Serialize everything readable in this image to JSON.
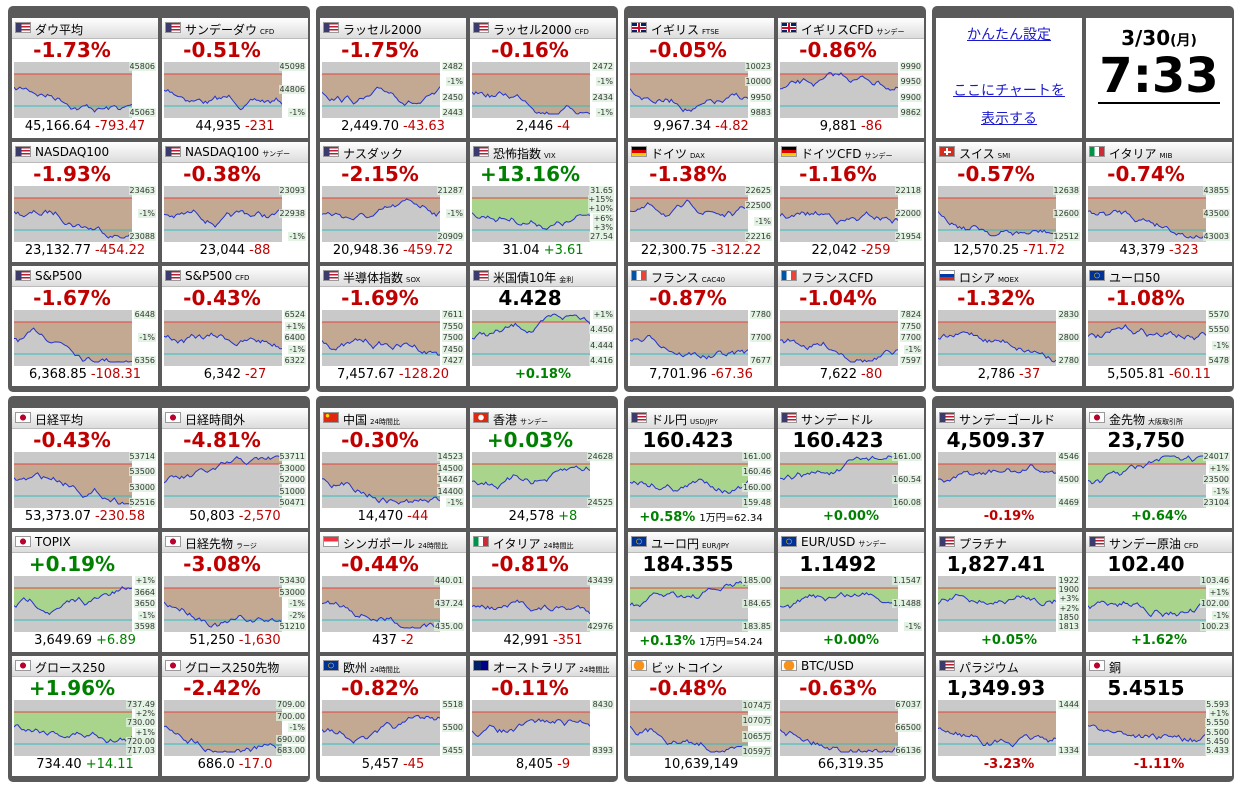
{
  "groups": [
    {
      "tiles": [
        {
          "name": "ダウ平均",
          "tag": "",
          "headline": "-1.73%",
          "axis": [
            "45806",
            "45063"
          ],
          "footer": [
            "45,166.64",
            "-793.47"
          ]
        },
        {
          "name": "サンデーダウ",
          "tag": "CFD",
          "headline": "-0.51%",
          "axis": [
            "45098",
            "44806",
            "-1%"
          ],
          "footer": [
            "44,935",
            "-231"
          ]
        },
        {
          "name": "NASDAQ100",
          "tag": "",
          "headline": "-1.93%",
          "axis": [
            "23463",
            "-1%",
            "23088"
          ],
          "footer": [
            "23,132.77",
            "-454.22"
          ]
        },
        {
          "name": "NASDAQ100",
          "tag": "サンデー",
          "headline": "-0.38%",
          "axis": [
            "23093",
            "22938",
            "-1%"
          ],
          "footer": [
            "23,044",
            "-88"
          ]
        },
        {
          "name": "S&P500",
          "tag": "",
          "headline": "-1.67%",
          "axis": [
            "6448",
            "-1%",
            "6356"
          ],
          "footer": [
            "6,368.85",
            "-108.31"
          ]
        },
        {
          "name": "S&P500",
          "tag": "CFD",
          "headline": "-0.43%",
          "axis": [
            "6524",
            "+1%",
            "6400",
            "-1%",
            "6322"
          ],
          "footer": [
            "6,342",
            "-27"
          ]
        }
      ]
    },
    {
      "tiles": [
        {
          "name": "ラッセル2000",
          "tag": "",
          "headline": "-1.75%",
          "axis": [
            "2482",
            "-1%",
            "2450",
            "2443"
          ],
          "footer": [
            "2,449.70",
            "-43.63"
          ]
        },
        {
          "name": "ラッセル2000",
          "tag": "CFD",
          "headline": "-0.16%",
          "axis": [
            "2472",
            "-1%",
            "2434",
            "-1%"
          ],
          "footer": [
            "2,446",
            "-4"
          ]
        },
        {
          "name": "ナスダック",
          "tag": "",
          "headline": "-2.15%",
          "axis": [
            "21287",
            "-1%",
            "20909"
          ],
          "footer": [
            "20,948.36",
            "-459.72"
          ]
        },
        {
          "name": "恐怖指数",
          "tag": "VIX",
          "headline": "+13.16%",
          "axis": [
            "31.65",
            "+15%",
            "+10%",
            "+6%",
            "+3%",
            "27.54"
          ],
          "footer": [
            "31.04",
            "+3.61"
          ]
        },
        {
          "name": "半導体指数",
          "tag": "SOX",
          "headline": "-1.69%",
          "axis": [
            "7611",
            "7550",
            "7500",
            "7450",
            "7427"
          ],
          "footer": [
            "7,457.67",
            "-128.20"
          ]
        },
        {
          "name": "米国債10年",
          "tag": "金利",
          "headline": "4.428",
          "axis": [
            "+1%",
            "4.450",
            "4.444",
            "4.416"
          ],
          "footer": [
            "+0.18%"
          ]
        }
      ]
    },
    {
      "tiles": [
        {
          "name": "イギリス",
          "tag": "FTSE",
          "headline": "-0.05%",
          "axis": [
            "10023",
            "10000",
            "9950",
            "9883"
          ],
          "footer": [
            "9,967.34",
            "-4.82"
          ]
        },
        {
          "name": "イギリスCFD",
          "tag": "サンデー",
          "headline": "-0.86%",
          "axis": [
            "9990",
            "9950",
            "9900",
            "9862"
          ],
          "footer": [
            "9,881",
            "-86"
          ]
        },
        {
          "name": "ドイツ",
          "tag": "DAX",
          "headline": "-1.38%",
          "axis": [
            "22625",
            "22500",
            "-1%",
            "22216"
          ],
          "footer": [
            "22,300.75",
            "-312.22"
          ]
        },
        {
          "name": "ドイツCFD",
          "tag": "サンデー",
          "headline": "-1.16%",
          "axis": [
            "22118",
            "22000",
            "21954"
          ],
          "footer": [
            "22,042",
            "-259"
          ]
        },
        {
          "name": "フランス",
          "tag": "CAC40",
          "headline": "-0.87%",
          "axis": [
            "7780",
            "7700",
            "7677"
          ],
          "footer": [
            "7,701.96",
            "-67.36"
          ]
        },
        {
          "name": "フランスCFD",
          "tag": "",
          "headline": "-1.04%",
          "axis": [
            "7824",
            "7750",
            "7700",
            "-1%",
            "7597"
          ],
          "footer": [
            "7,622",
            "-80"
          ]
        }
      ]
    },
    {
      "tiles": [
        {
          "name": "スイス",
          "tag": "SMI",
          "headline": "-0.57%",
          "axis": [
            "12638",
            "12600",
            "12512"
          ],
          "footer": [
            "12,570.25",
            "-71.72"
          ]
        },
        {
          "name": "イタリア",
          "tag": "MIB",
          "headline": "-0.74%",
          "axis": [
            "43855",
            "43500",
            "43003"
          ],
          "footer": [
            "43,379",
            "-323"
          ]
        },
        {
          "name": "ロシア",
          "tag": "MOEX",
          "headline": "-1.32%",
          "axis": [
            "2830",
            "2800",
            "2780"
          ],
          "footer": [
            "2,786",
            "-37"
          ]
        },
        {
          "name": "ユーロ50",
          "tag": "",
          "headline": "-1.08%",
          "axis": [
            "5570",
            "5550",
            "-1%",
            "5478"
          ],
          "footer": [
            "5,505.81",
            "-60.11"
          ]
        }
      ]
    },
    {
      "tiles": [
        {
          "name": "日経平均",
          "tag": "",
          "headline": "-0.43%",
          "axis": [
            "53714",
            "53500",
            "53000",
            "52516"
          ],
          "footer": [
            "53,373.07",
            "-230.58"
          ]
        },
        {
          "name": "日経時間外",
          "tag": "",
          "headline": "-4.81%",
          "axis": [
            "53711",
            "53000",
            "52000",
            "51000",
            "50471"
          ],
          "footer": [
            "50,803",
            "-2,570"
          ]
        },
        {
          "name": "TOPIX",
          "tag": "",
          "headline": "+0.19%",
          "axis": [
            "+1%",
            "3664",
            "3650",
            "-1%",
            "3598"
          ],
          "footer": [
            "3,649.69",
            "+6.89"
          ]
        },
        {
          "name": "日経先物",
          "tag": "ラージ",
          "headline": "-3.08%",
          "axis": [
            "53430",
            "53000",
            "-1%",
            "-2%",
            "51210"
          ],
          "footer": [
            "51,250",
            "-1,630"
          ]
        },
        {
          "name": "グロース250",
          "tag": "",
          "headline": "+1.96%",
          "axis": [
            "737.49",
            "+2%",
            "730.00",
            "+1%",
            "720.00",
            "717.03"
          ],
          "footer": [
            "734.40",
            "+14.11"
          ]
        },
        {
          "name": "グロース250先物",
          "tag": "",
          "headline": "-2.42%",
          "axis": [
            "709.00",
            "700.00",
            "-1%",
            "690.00",
            "683.00"
          ],
          "footer": [
            "686.0",
            "-17.0"
          ]
        }
      ]
    },
    {
      "tiles": [
        {
          "name": "中国",
          "tag": "24時間比",
          "headline": "-0.30%",
          "axis": [
            "14523",
            "14500",
            "14467",
            "14400",
            "-1%"
          ],
          "footer": [
            "14,470",
            "-44"
          ]
        },
        {
          "name": "香港",
          "tag": "サンデー",
          "headline": "+0.03%",
          "axis": [
            "24628",
            "24525"
          ],
          "footer": [
            "24,578",
            "+8"
          ]
        },
        {
          "name": "シンガポール",
          "tag": "24時間比",
          "headline": "-0.44%",
          "axis": [
            "440.01",
            "437.24",
            "435.00"
          ],
          "footer": [
            "437",
            "-2"
          ]
        },
        {
          "name": "イタリア",
          "tag": "24時間比",
          "headline": "-0.81%",
          "axis": [
            "43439",
            "42976"
          ],
          "footer": [
            "42,991",
            "-351"
          ]
        },
        {
          "name": "欧州",
          "tag": "24時間比",
          "headline": "-0.82%",
          "axis": [
            "5518",
            "5500",
            "5455"
          ],
          "footer": [
            "5,457",
            "-45"
          ]
        },
        {
          "name": "オーストラリア",
          "tag": "24時間比",
          "headline": "-0.11%",
          "axis": [
            "8430",
            "8393"
          ],
          "footer": [
            "8,405",
            "-9"
          ]
        }
      ]
    },
    {
      "tiles": [
        {
          "name": "ドル円",
          "tag": "USD/JPY",
          "headline": "160.423",
          "axis": [
            "161.00",
            "160.46",
            "160.00",
            "159.48"
          ],
          "footer": [
            "+0.58%",
            "1万円=62.34"
          ]
        },
        {
          "name": "サンデードル",
          "tag": "",
          "headline": "160.423",
          "axis": [
            "161.00",
            "160.54",
            "160.08"
          ],
          "footer": [
            "+0.00%"
          ]
        },
        {
          "name": "ユーロ円",
          "tag": "EUR/JPY",
          "headline": "184.355",
          "axis": [
            "185.00",
            "184.65",
            "183.85"
          ],
          "footer": [
            "+0.13%",
            "1万円=54.24"
          ]
        },
        {
          "name": "EUR/USD",
          "tag": "サンデー",
          "headline": "1.1492",
          "axis": [
            "1.1547",
            "1.1488",
            "-1%"
          ],
          "footer": [
            "+0.00%"
          ]
        },
        {
          "name": "ビットコイン",
          "tag": "",
          "headline": "-0.48%",
          "axis": [
            "1074万",
            "1070万",
            "1065万",
            "1059万"
          ],
          "footer": [
            "10,639,149"
          ]
        },
        {
          "name": "BTC/USD",
          "tag": "",
          "headline": "-0.63%",
          "axis": [
            "67037",
            "66500",
            "66136"
          ],
          "footer": [
            "66,319.35"
          ]
        }
      ]
    },
    {
      "tiles": [
        {
          "name": "サンデーゴールド",
          "tag": "",
          "headline": "4,509.37",
          "axis": [
            "4546",
            "4500",
            "4469"
          ],
          "footer": [
            "-0.19%"
          ]
        },
        {
          "name": "金先物",
          "tag": "大阪取引所",
          "headline": "23,750",
          "axis": [
            "24017",
            "+1%",
            "23500",
            "-1%",
            "23104"
          ],
          "footer": [
            "+0.64%"
          ]
        },
        {
          "name": "プラチナ",
          "tag": "",
          "headline": "1,827.41",
          "axis": [
            "1922",
            "1900",
            "+3%",
            "+2%",
            "1850",
            "1813"
          ],
          "footer": [
            "+0.05%"
          ]
        },
        {
          "name": "サンデー原油",
          "tag": "CFD",
          "headline": "102.40",
          "axis": [
            "103.46",
            "+1%",
            "102.00",
            "-1%",
            "100.23"
          ],
          "footer": [
            "+1.62%"
          ]
        },
        {
          "name": "パラジウム",
          "tag": "",
          "headline": "1,349.93",
          "axis": [
            "1444",
            "1334"
          ],
          "footer": [
            "-3.23%"
          ]
        },
        {
          "name": "銅",
          "tag": "",
          "headline": "5.4515",
          "axis": [
            "5.593",
            "+1%",
            "5.550",
            "5.500",
            "5.450",
            "5.433"
          ],
          "footer": [
            "-1.11%"
          ]
        }
      ]
    }
  ],
  "settings": {
    "link1": "かんたん設定",
    "link2": "ここにチャートを",
    "link3": "表示する"
  },
  "clock": {
    "date": "3/30",
    "weekday": "(月)",
    "time": "7:33"
  }
}
